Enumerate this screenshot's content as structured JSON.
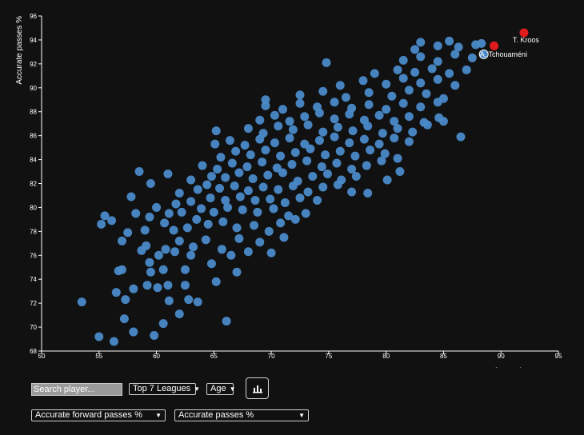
{
  "chart_data": {
    "type": "scatter",
    "xlabel": "Accurate forward passes %",
    "ylabel": "Accurate passes %",
    "xlim": [
      50,
      95
    ],
    "ylim": [
      68,
      96
    ],
    "xticks": [
      50,
      55,
      60,
      65,
      70,
      75,
      80,
      85,
      90,
      95
    ],
    "yticks": [
      68,
      70,
      72,
      74,
      76,
      78,
      80,
      82,
      84,
      86,
      88,
      90,
      92,
      94,
      96
    ],
    "grid": false,
    "point_color": "#4a8ac9",
    "highlight_color": "#e01b1b",
    "highlighted": [
      {
        "label": "T. Kroos",
        "x": 92.0,
        "y": 94.6,
        "color": "#e01b1b"
      },
      {
        "label": "",
        "x": 89.4,
        "y": 93.5,
        "color": "#e01b1b"
      },
      {
        "label": "A. Tchouaméni",
        "x": 88.5,
        "y": 92.8,
        "color": "#4a8ac9"
      }
    ],
    "points": [
      [
        53.5,
        72.1
      ],
      [
        55.0,
        69.2
      ],
      [
        56.3,
        68.8
      ],
      [
        58.0,
        69.6
      ],
      [
        59.8,
        69.3
      ],
      [
        60.6,
        70.3
      ],
      [
        57.2,
        70.7
      ],
      [
        66.1,
        70.5
      ],
      [
        62.0,
        71.1
      ],
      [
        56.5,
        72.9
      ],
      [
        57.3,
        72.3
      ],
      [
        61.1,
        72.2
      ],
      [
        62.8,
        72.3
      ],
      [
        63.6,
        72.1
      ],
      [
        58.0,
        73.2
      ],
      [
        59.2,
        73.5
      ],
      [
        60.1,
        73.3
      ],
      [
        61.0,
        73.5
      ],
      [
        62.5,
        73.5
      ],
      [
        65.2,
        73.8
      ],
      [
        56.7,
        74.7
      ],
      [
        57.0,
        74.8
      ],
      [
        59.5,
        74.6
      ],
      [
        60.6,
        74.8
      ],
      [
        62.5,
        74.8
      ],
      [
        67.0,
        74.6
      ],
      [
        59.4,
        75.4
      ],
      [
        60.2,
        76.0
      ],
      [
        61.6,
        76.3
      ],
      [
        63.0,
        76.0
      ],
      [
        64.8,
        75.3
      ],
      [
        66.5,
        76.0
      ],
      [
        68.0,
        76.3
      ],
      [
        58.7,
        76.4
      ],
      [
        59.1,
        76.8
      ],
      [
        60.8,
        76.5
      ],
      [
        62.0,
        77.2
      ],
      [
        63.2,
        76.7
      ],
      [
        64.3,
        77.3
      ],
      [
        65.7,
        76.5
      ],
      [
        67.2,
        77.4
      ],
      [
        69.0,
        77.1
      ],
      [
        70.0,
        76.2
      ],
      [
        71.1,
        77.5
      ],
      [
        57.0,
        77.2
      ],
      [
        57.5,
        77.9
      ],
      [
        55.2,
        78.6
      ],
      [
        59.0,
        78.1
      ],
      [
        60.7,
        78.7
      ],
      [
        61.5,
        78.1
      ],
      [
        62.7,
        78.3
      ],
      [
        63.5,
        79.0
      ],
      [
        64.5,
        78.6
      ],
      [
        65.8,
        78.8
      ],
      [
        67.0,
        78.3
      ],
      [
        68.5,
        78.5
      ],
      [
        69.8,
        78.0
      ],
      [
        70.8,
        78.7
      ],
      [
        72.1,
        79.0
      ],
      [
        56.1,
        78.9
      ],
      [
        55.5,
        79.3
      ],
      [
        58.2,
        79.5
      ],
      [
        59.4,
        79.2
      ],
      [
        61.1,
        79.5
      ],
      [
        62.2,
        79.6
      ],
      [
        63.9,
        79.9
      ],
      [
        65.0,
        79.6
      ],
      [
        66.2,
        80.0
      ],
      [
        67.5,
        79.8
      ],
      [
        68.8,
        79.6
      ],
      [
        70.2,
        79.9
      ],
      [
        71.5,
        79.3
      ],
      [
        73.0,
        79.5
      ],
      [
        57.8,
        80.9
      ],
      [
        60.0,
        80.0
      ],
      [
        61.7,
        80.3
      ],
      [
        63.0,
        80.5
      ],
      [
        64.7,
        80.8
      ],
      [
        66.0,
        80.6
      ],
      [
        67.3,
        80.9
      ],
      [
        68.6,
        80.6
      ],
      [
        69.9,
        80.7
      ],
      [
        71.2,
        80.4
      ],
      [
        72.5,
        80.8
      ],
      [
        74.0,
        80.6
      ],
      [
        62.0,
        81.2
      ],
      [
        63.6,
        81.5
      ],
      [
        64.4,
        81.9
      ],
      [
        65.5,
        81.6
      ],
      [
        66.8,
        81.8
      ],
      [
        68.0,
        81.4
      ],
      [
        69.3,
        81.7
      ],
      [
        70.6,
        81.5
      ],
      [
        71.9,
        81.8
      ],
      [
        73.2,
        81.3
      ],
      [
        74.5,
        81.7
      ],
      [
        75.8,
        81.9
      ],
      [
        77.0,
        81.3
      ],
      [
        78.4,
        81.2
      ],
      [
        59.5,
        82.0
      ],
      [
        61.0,
        82.8
      ],
      [
        63.0,
        82.3
      ],
      [
        64.8,
        82.6
      ],
      [
        66.0,
        82.5
      ],
      [
        67.2,
        82.9
      ],
      [
        68.4,
        82.4
      ],
      [
        69.7,
        82.7
      ],
      [
        71.0,
        82.9
      ],
      [
        72.3,
        82.2
      ],
      [
        73.6,
        82.6
      ],
      [
        74.9,
        82.8
      ],
      [
        76.1,
        82.3
      ],
      [
        77.4,
        82.6
      ],
      [
        80.1,
        82.3
      ],
      [
        58.5,
        83.0
      ],
      [
        64.0,
        83.5
      ],
      [
        65.3,
        83.2
      ],
      [
        66.6,
        83.7
      ],
      [
        67.9,
        83.4
      ],
      [
        69.2,
        83.8
      ],
      [
        70.5,
        83.3
      ],
      [
        71.8,
        83.6
      ],
      [
        73.1,
        83.9
      ],
      [
        74.4,
        83.4
      ],
      [
        75.7,
        83.7
      ],
      [
        77.0,
        83.2
      ],
      [
        78.3,
        83.5
      ],
      [
        79.6,
        83.9
      ],
      [
        81.2,
        83.0
      ],
      [
        65.6,
        84.2
      ],
      [
        66.9,
        84.7
      ],
      [
        68.2,
        84.4
      ],
      [
        69.5,
        84.8
      ],
      [
        70.8,
        84.3
      ],
      [
        72.1,
        84.6
      ],
      [
        73.4,
        84.9
      ],
      [
        74.7,
        84.4
      ],
      [
        76.0,
        84.7
      ],
      [
        77.3,
        84.3
      ],
      [
        78.6,
        84.8
      ],
      [
        79.9,
        84.5
      ],
      [
        81.0,
        84.1
      ],
      [
        65.1,
        85.3
      ],
      [
        66.4,
        85.6
      ],
      [
        67.7,
        85.2
      ],
      [
        69.0,
        85.7
      ],
      [
        70.3,
        85.4
      ],
      [
        71.6,
        85.8
      ],
      [
        72.9,
        85.3
      ],
      [
        74.2,
        85.6
      ],
      [
        75.5,
        85.9
      ],
      [
        76.8,
        85.4
      ],
      [
        78.1,
        85.7
      ],
      [
        79.4,
        85.3
      ],
      [
        80.7,
        85.8
      ],
      [
        82.0,
        85.5
      ],
      [
        86.5,
        85.9
      ],
      [
        65.2,
        86.4
      ],
      [
        68.0,
        86.6
      ],
      [
        69.3,
        86.2
      ],
      [
        70.6,
        86.8
      ],
      [
        71.9,
        86.5
      ],
      [
        73.2,
        86.9
      ],
      [
        74.5,
        86.3
      ],
      [
        75.8,
        86.7
      ],
      [
        77.1,
        86.4
      ],
      [
        78.4,
        86.8
      ],
      [
        79.7,
        86.2
      ],
      [
        81.0,
        86.6
      ],
      [
        82.3,
        86.3
      ],
      [
        83.6,
        86.9
      ],
      [
        69.0,
        87.3
      ],
      [
        70.3,
        87.7
      ],
      [
        71.6,
        87.2
      ],
      [
        72.9,
        87.6
      ],
      [
        74.2,
        87.9
      ],
      [
        75.5,
        87.4
      ],
      [
        76.8,
        87.8
      ],
      [
        78.1,
        87.3
      ],
      [
        79.4,
        87.7
      ],
      [
        80.7,
        87.2
      ],
      [
        82.0,
        87.6
      ],
      [
        83.3,
        87.1
      ],
      [
        84.6,
        87.5
      ],
      [
        85.0,
        87.2
      ],
      [
        69.5,
        88.5
      ],
      [
        71.0,
        88.2
      ],
      [
        72.5,
        88.7
      ],
      [
        74.0,
        88.4
      ],
      [
        75.5,
        88.8
      ],
      [
        77.0,
        88.3
      ],
      [
        78.5,
        88.6
      ],
      [
        80.0,
        88.2
      ],
      [
        81.5,
        88.7
      ],
      [
        83.0,
        88.4
      ],
      [
        84.5,
        88.8
      ],
      [
        69.5,
        89.0
      ],
      [
        72.5,
        89.4
      ],
      [
        74.5,
        89.7
      ],
      [
        76.5,
        89.2
      ],
      [
        78.5,
        89.6
      ],
      [
        80.5,
        89.3
      ],
      [
        82.0,
        89.8
      ],
      [
        83.5,
        89.5
      ],
      [
        85.0,
        89.1
      ],
      [
        76.0,
        90.2
      ],
      [
        78.0,
        90.6
      ],
      [
        80.0,
        90.3
      ],
      [
        81.5,
        90.8
      ],
      [
        83.0,
        90.4
      ],
      [
        84.5,
        90.7
      ],
      [
        86.0,
        90.2
      ],
      [
        79.0,
        91.2
      ],
      [
        81.0,
        91.5
      ],
      [
        82.5,
        91.3
      ],
      [
        84.0,
        91.6
      ],
      [
        85.5,
        91.2
      ],
      [
        87.0,
        91.5
      ],
      [
        74.8,
        92.1
      ],
      [
        81.5,
        92.3
      ],
      [
        83.0,
        92.6
      ],
      [
        84.5,
        92.2
      ],
      [
        86.0,
        92.8
      ],
      [
        87.5,
        92.5
      ],
      [
        82.5,
        93.2
      ],
      [
        84.5,
        93.5
      ],
      [
        86.3,
        93.4
      ],
      [
        87.8,
        93.6
      ],
      [
        83.0,
        93.8
      ],
      [
        85.5,
        93.9
      ],
      [
        88.3,
        93.7
      ]
    ]
  },
  "controls": {
    "search_placeholder": "Search player...",
    "league_select": "Top 7 Leagues",
    "age_select": "Age",
    "chart_button_icon": "bar-chart-icon",
    "x_metric_select": "Accurate forward passes %",
    "y_metric_select": "Accurate passes %"
  }
}
